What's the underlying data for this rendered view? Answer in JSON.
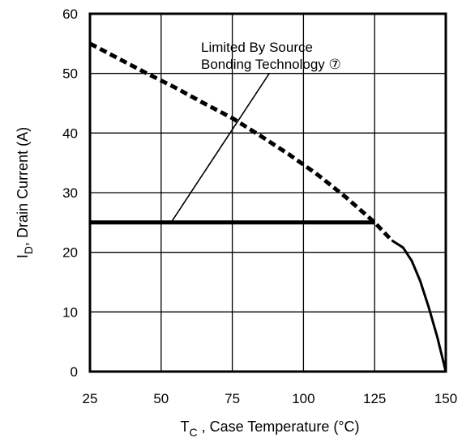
{
  "chart_data": {
    "type": "line",
    "title": "",
    "xlabel": {
      "symbol": "T",
      "subscript": "C",
      "rest": " , Case Temperature (°C)"
    },
    "ylabel": {
      "symbol": "I",
      "subscript": "D",
      "rest": ",  Drain Current (A)"
    },
    "xlim": [
      25,
      150
    ],
    "ylim": [
      0,
      60
    ],
    "x_ticks": [
      25,
      50,
      75,
      100,
      125,
      150
    ],
    "y_ticks": [
      0,
      10,
      20,
      30,
      40,
      50,
      60
    ],
    "grid": true,
    "legend": "none",
    "series": [
      {
        "style": "dashed",
        "x": [
          25,
          35,
          45,
          55,
          65,
          75,
          85,
          95,
          105,
          115,
          125,
          131
        ],
        "y": [
          55,
          52.5,
          50,
          47.6,
          45,
          42.5,
          39.5,
          36.4,
          33,
          29.2,
          25,
          22
        ]
      },
      {
        "style": "solid",
        "x": [
          131,
          135,
          138,
          141,
          144,
          147,
          150
        ],
        "y": [
          22,
          20.8,
          18.6,
          15.2,
          10.8,
          5.8,
          0
        ]
      },
      {
        "style": "solid-thick",
        "x": [
          25,
          125
        ],
        "y": [
          25,
          25
        ]
      }
    ],
    "annotations": [
      {
        "lines": [
          "Limited By Source",
          "Bonding Technology ⑦"
        ],
        "pointer_from": [
          53.5,
          25
        ],
        "pointer_to": [
          88,
          50
        ]
      }
    ]
  }
}
